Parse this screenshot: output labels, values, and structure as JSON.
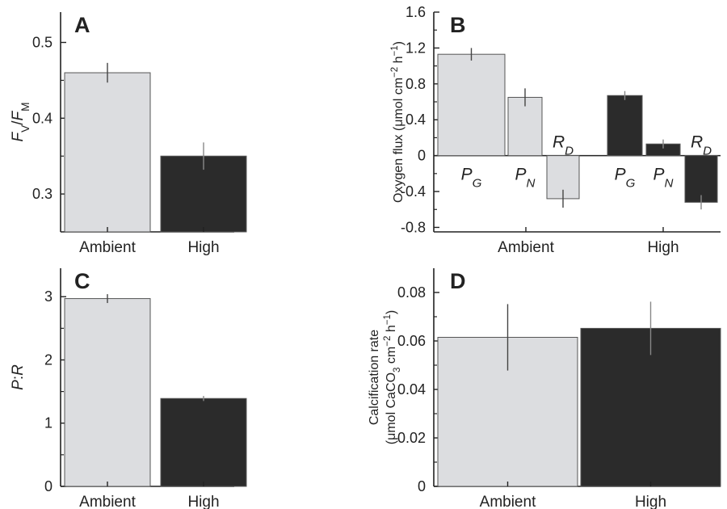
{
  "colors": {
    "ambient": "#dcdde0",
    "high": "#2b2b2b",
    "axis": "#222222"
  },
  "chart_data": [
    {
      "panel": "A",
      "type": "bar",
      "ylabel": {
        "parts": [
          {
            "t": "F",
            "i": true
          },
          {
            "t": "V",
            "i": false,
            "sub": true
          },
          {
            "t": "/",
            "i": false
          },
          {
            "t": "F",
            "i": true
          },
          {
            "t": "M",
            "i": false,
            "sub": true
          }
        ]
      },
      "categories": [
        "Ambient",
        "High"
      ],
      "values": [
        0.46,
        0.35
      ],
      "errors": [
        0.013,
        0.018
      ],
      "ylim": [
        0.25,
        0.54
      ],
      "yticks": [
        {
          "v": 0.3,
          "label": "0.3"
        },
        {
          "v": 0.4,
          "label": "0.4"
        },
        {
          "v": 0.5,
          "label": "0.5"
        }
      ],
      "minor_yticks": [
        0.35,
        0.45
      ]
    },
    {
      "panel": "B",
      "type": "bar",
      "ylabel": {
        "parts": [
          {
            "t": "Oxygen flux (μmol cm",
            "i": false
          },
          {
            "t": "−2",
            "i": false,
            "sup": true
          },
          {
            "t": " h",
            "i": false
          },
          {
            "t": "−1",
            "i": false,
            "sup": true
          },
          {
            "t": ")",
            "i": false
          }
        ]
      },
      "categories": [
        "Ambient",
        "High"
      ],
      "bars": [
        {
          "group": "Ambient",
          "label": "P",
          "sub": "G",
          "value": 1.13,
          "error": 0.07
        },
        {
          "group": "Ambient",
          "label": "P",
          "sub": "N",
          "value": 0.65,
          "error": 0.1
        },
        {
          "group": "Ambient",
          "label": "R",
          "sub": "D",
          "value": -0.48,
          "error": 0.1
        },
        {
          "group": "High",
          "label": "P",
          "sub": "G",
          "value": 0.67,
          "error": 0.05
        },
        {
          "group": "High",
          "label": "P",
          "sub": "N",
          "value": 0.13,
          "error": 0.05
        },
        {
          "group": "High",
          "label": "R",
          "sub": "D",
          "value": -0.52,
          "error": 0.08
        }
      ],
      "ylim": [
        -0.85,
        1.6
      ],
      "yticks": [
        {
          "v": -0.8,
          "label": "-0.8"
        },
        {
          "v": -0.4,
          "label": "-0.4"
        },
        {
          "v": 0,
          "label": "0"
        },
        {
          "v": 0.4,
          "label": "0.4"
        },
        {
          "v": 0.8,
          "label": "0.8"
        },
        {
          "v": 1.2,
          "label": "1.2"
        },
        {
          "v": 1.6,
          "label": "1.6"
        }
      ],
      "minor_yticks": [
        -0.6,
        -0.2,
        0.2,
        0.6,
        1.0,
        1.4
      ]
    },
    {
      "panel": "C",
      "type": "bar",
      "ylabel": {
        "parts": [
          {
            "t": "P",
            "i": true
          },
          {
            "t": ":",
            "i": false
          },
          {
            "t": "R",
            "i": true
          }
        ]
      },
      "categories": [
        "Ambient",
        "High"
      ],
      "values": [
        2.97,
        1.39
      ],
      "errors": [
        0.07,
        0.04
      ],
      "ylim": [
        0,
        3.45
      ],
      "yticks": [
        {
          "v": 0,
          "label": "0"
        },
        {
          "v": 1,
          "label": "1"
        },
        {
          "v": 2,
          "label": "2"
        },
        {
          "v": 3,
          "label": "3"
        }
      ],
      "minor_yticks": [
        0.5,
        1.5,
        2.5
      ]
    },
    {
      "panel": "D",
      "type": "bar",
      "ylabel_lines": [
        {
          "parts": [
            {
              "t": "Calcification rate",
              "i": false
            }
          ]
        },
        {
          "parts": [
            {
              "t": "(μmol CaCO",
              "i": false
            },
            {
              "t": "3",
              "i": false,
              "sub": true
            },
            {
              "t": " cm",
              "i": false
            },
            {
              "t": "−2",
              "i": false,
              "sup": true
            },
            {
              "t": " h",
              "i": false
            },
            {
              "t": "−1",
              "i": false,
              "sup": true
            },
            {
              "t": ")",
              "i": false
            }
          ]
        }
      ],
      "categories": [
        "Ambient",
        "High"
      ],
      "values": [
        0.0615,
        0.0652
      ],
      "errors": [
        0.0137,
        0.011
      ],
      "ylim": [
        0,
        0.09
      ],
      "yticks": [
        {
          "v": 0,
          "label": "0"
        },
        {
          "v": 0.02,
          "label": "0.02"
        },
        {
          "v": 0.04,
          "label": "0.04"
        },
        {
          "v": 0.06,
          "label": "0.06"
        },
        {
          "v": 0.08,
          "label": "0.08"
        }
      ],
      "minor_yticks": [
        0.01,
        0.03,
        0.05,
        0.07
      ]
    }
  ]
}
